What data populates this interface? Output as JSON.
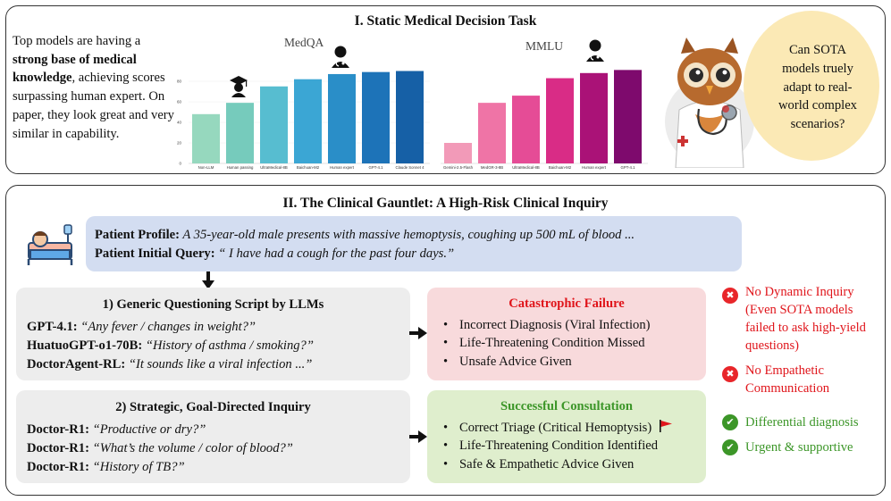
{
  "panel1": {
    "title": "I.  Static Medical Decision Task",
    "intro": {
      "text_a": "Top models are having a ",
      "text_bold": "strong base of medical knowledge",
      "text_b": ", achieving scores surpassing human expert. On paper, they look great and very similar in capability."
    },
    "bubble": "Can SOTA models truely adapt to real-world complex scenarios?"
  },
  "chart_data": [
    {
      "type": "bar",
      "title": "MedQA",
      "categories": [
        "Non-LLM",
        "Human passing",
        "UltraMedical-8B",
        "Baichuan-M2",
        "Human expert",
        "GPT-4.1",
        "Claude Sonnet 4"
      ],
      "values": [
        48,
        59,
        75,
        82,
        87,
        89,
        90
      ],
      "colors": [
        "#96d8be",
        "#76cbbc",
        "#57bdd0",
        "#3ba6d4",
        "#2a8ec8",
        "#1d73b8",
        "#1660a6"
      ],
      "ylim": [
        0,
        100
      ],
      "yticks": [
        "0",
        "20",
        "40",
        "60",
        "80"
      ],
      "xlabel": "",
      "ylabel": ""
    },
    {
      "type": "bar",
      "title": "MMLU",
      "categories": [
        "Gemini-2.5-Flash",
        "MedGR-3-8B",
        "UltraMedical-8B",
        "Baichuan-M2",
        "Human expert",
        "GPT-4.1"
      ],
      "values": [
        20,
        59,
        66,
        83,
        88,
        91
      ],
      "colors": [
        "#f29ab8",
        "#ef74a6",
        "#e54c96",
        "#d92c86",
        "#aa1277",
        "#7e0a6d"
      ],
      "ylim": [
        0,
        100
      ],
      "xlabel": "",
      "ylabel": ""
    }
  ],
  "panel2": {
    "title": "II.  The Clinical Gauntlet: A High-Risk Clinical Inquiry",
    "profile_label": "Patient Profile:",
    "profile_text": " A 35-year-old male presents with massive hemoptysis, coughing up 500 mL of blood ...",
    "query_label": "Patient Initial Query:",
    "query_text": " “ I have had a cough for the past four days.”",
    "generic": {
      "title": "1) Generic Questioning Script by LLMs",
      "rows": [
        {
          "model": "GPT-4.1:",
          "quote": " “Any fever /  changes in weight?”"
        },
        {
          "model": "HuatuoGPT-o1-70B:",
          "quote": " “History of asthma / smoking?”"
        },
        {
          "model": "DoctorAgent-RL:",
          "quote": " “It sounds like a viral infection ...”"
        }
      ]
    },
    "strategic": {
      "title": "2) Strategic, Goal-Directed Inquiry",
      "rows": [
        {
          "model": "Doctor-R1:",
          "quote": " “Productive or dry?”"
        },
        {
          "model": "Doctor-R1:",
          "quote": " “What’s the volume / color of blood?”"
        },
        {
          "model": "Doctor-R1:",
          "quote": " “History of TB?”"
        }
      ]
    },
    "failure": {
      "title": "Catastrophic Failure",
      "items": [
        "Incorrect Diagnosis (Viral Infection)",
        "Life-Threatening Condition Missed",
        "Unsafe Advice Given"
      ]
    },
    "success": {
      "title": "Successful Consultation",
      "items": [
        "Correct Triage (Critical Hemoptysis)",
        "Life-Threatening Condition Identified",
        "Safe & Empathetic Advice Given"
      ]
    },
    "notes": {
      "no_dynamic": "No Dynamic Inquiry (Even SOTA models failed to ask high-yield questions)",
      "no_empathetic": "No Empathetic Communication",
      "differential": "Differential diagnosis",
      "urgent": "Urgent & supportive"
    }
  },
  "icons": {
    "x_glyph": "✖",
    "check_glyph": "✔",
    "accent_red": "#e0151b",
    "accent_green": "#3c9628"
  }
}
